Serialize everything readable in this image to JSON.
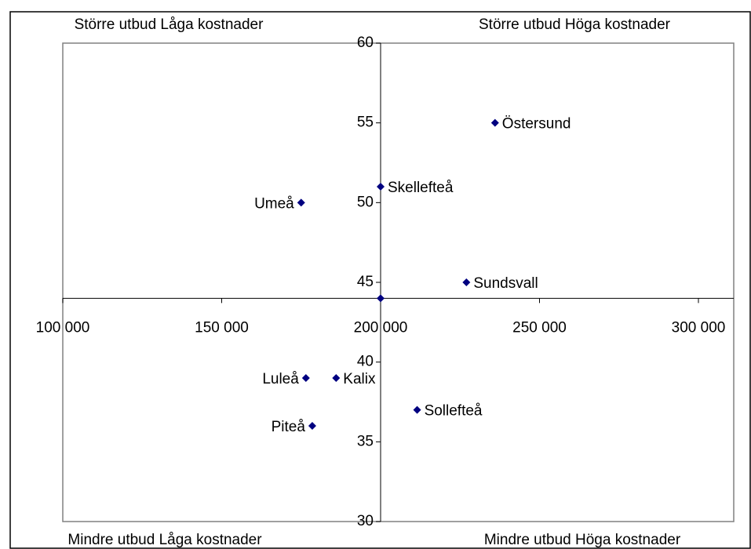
{
  "chart_data": {
    "type": "scatter",
    "quadrant_labels": {
      "top_left": "Större utbud Låga kostnader",
      "top_right": "Större utbud Höga kostnader",
      "bottom_left": "Mindre utbud Låga kostnader",
      "bottom_right": "Mindre utbud Höga kostnader"
    },
    "series": [
      {
        "color": "#000080",
        "x": [
          236000,
          200000,
          175000,
          227000,
          200000,
          176500,
          186000,
          178500,
          211500
        ],
        "values": [
          55,
          51,
          50,
          45,
          44,
          39,
          39,
          36,
          37
        ],
        "labels": [
          "Östersund",
          "Skellefteå",
          "Umeå",
          "Sundsvall",
          null,
          "Luleå",
          "Kalix",
          "Piteå",
          "Sollefteå"
        ]
      }
    ],
    "xlim": [
      100000,
      300000
    ],
    "xticks": [
      {
        "value": 100000,
        "label": "100 000"
      },
      {
        "value": 150000,
        "label": "150 000"
      },
      {
        "value": 200000,
        "label": "200 000"
      },
      {
        "value": 250000,
        "label": "250 000"
      },
      {
        "value": 300000,
        "label": "300 000"
      }
    ],
    "ylim": [
      30,
      60
    ],
    "yticks": [
      30,
      35,
      40,
      45,
      50,
      55,
      60
    ],
    "x_axis_crosses": 44,
    "y_axis_crosses": 200000
  }
}
